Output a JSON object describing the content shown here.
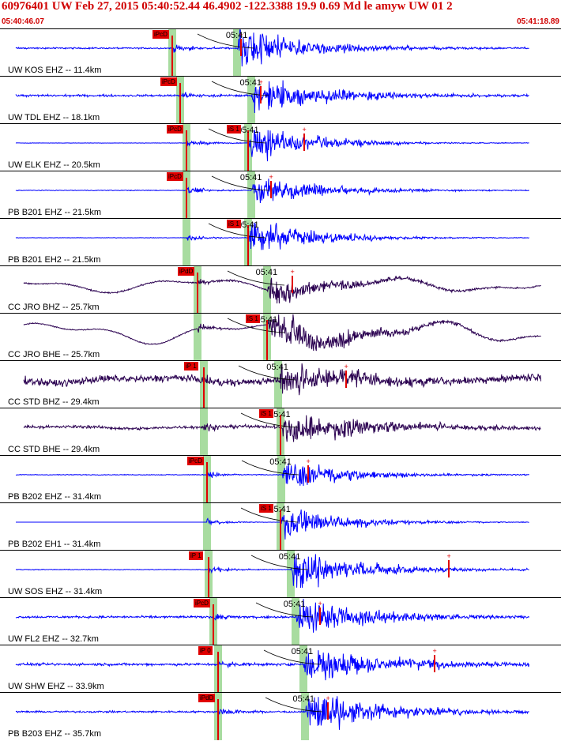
{
  "header": {
    "title": "60976401 UW Feb 27, 2015 05:40:52.44   46.4902 -122.3388 19.9 0.69 Md le amyw UW 01   2",
    "start_time": "05:40:46.07",
    "end_time": "05:41:18.89"
  },
  "time_mark_label": "05:41",
  "colors": {
    "trace_blue": "#0000ff",
    "trace_dark": "#2a0050",
    "pick_red": "#e00000",
    "window_green": "#a8dca0"
  },
  "stations": [
    {
      "label": "UW KOS EHZ -- 11.4km",
      "pick": "iPcD",
      "s_pick": "",
      "color": "blue",
      "p": 218,
      "s": 300,
      "amp": 0.55,
      "noise": 0.04,
      "coda": 0.25,
      "lf": 0,
      "marker": 305
    },
    {
      "label": "UW TDL EHZ -- 18.1km",
      "pick": "iPcD",
      "s_pick": "",
      "color": "blue",
      "p": 228,
      "s": 318,
      "amp": 0.5,
      "noise": 0.06,
      "coda": 0.3,
      "lf": 0,
      "marker": 330
    },
    {
      "label": "UW ELK EHZ -- 20.5km",
      "pick": "iPcD",
      "s_pick": "iS 1",
      "color": "blue",
      "p": 236,
      "s": 314,
      "amp": 0.55,
      "noise": 0.01,
      "coda": 0.15,
      "lf": 0,
      "marker": 385
    },
    {
      "label": "PB B201 EHZ -- 21.5km",
      "pick": "iPcD",
      "s_pick": "",
      "color": "blue",
      "p": 236,
      "s": 318,
      "amp": 0.45,
      "noise": 0.02,
      "coda": 0.2,
      "lf": 0,
      "marker": 343
    },
    {
      "label": "PB B201 EH2 -- 21.5km",
      "pick": "",
      "s_pick": "iS 1",
      "color": "blue",
      "p": 236,
      "s": 314,
      "amp": 0.5,
      "noise": 0.01,
      "coda": 0.15,
      "lf": 0,
      "marker": 0
    },
    {
      "label": "CC JRO BHZ -- 25.7km",
      "pick": "iPdD",
      "s_pick": "",
      "color": "dark",
      "p": 250,
      "s": 338,
      "amp": 0.4,
      "noise": 0.04,
      "coda": 0.2,
      "lf": 0.3,
      "marker": 370
    },
    {
      "label": "CC JRO BHE -- 25.7km",
      "pick": "",
      "s_pick": "iS 1",
      "color": "dark",
      "p": 250,
      "s": 338,
      "amp": 0.55,
      "noise": 0.03,
      "coda": 0.3,
      "lf": 0.45,
      "marker": 0
    },
    {
      "label": "CC STD BHZ -- 29.4km",
      "pick": "iP 1",
      "s_pick": "",
      "color": "dark",
      "p": 258,
      "s": 352,
      "amp": 0.45,
      "noise": 0.2,
      "coda": 0.35,
      "lf": 0.12,
      "marker": 438
    },
    {
      "label": "CC STD BHE -- 29.4km",
      "pick": "",
      "s_pick": "iS 1",
      "color": "dark",
      "p": 258,
      "s": 355,
      "amp": 0.5,
      "noise": 0.08,
      "coda": 0.4,
      "lf": 0.05,
      "marker": 0
    },
    {
      "label": "PB B202 EHZ -- 31.4km",
      "pick": "iPcD",
      "s_pick": "",
      "color": "blue",
      "p": 262,
      "s": 356,
      "amp": 0.4,
      "noise": 0.02,
      "coda": 0.2,
      "lf": 0,
      "marker": 390
    },
    {
      "label": "PB B202 EH1 -- 31.4km",
      "pick": "",
      "s_pick": "iS 1",
      "color": "blue",
      "p": 262,
      "s": 355,
      "amp": 0.45,
      "noise": 0.0,
      "coda": 0.15,
      "lf": 0,
      "marker": 0
    },
    {
      "label": "UW SOS EHZ -- 31.4km",
      "pick": "iP 1",
      "s_pick": "",
      "color": "blue",
      "p": 264,
      "s": 368,
      "amp": 0.5,
      "noise": 0.02,
      "coda": 0.3,
      "lf": 0,
      "marker": 568
    },
    {
      "label": "UW FL2 EHZ -- 32.7km",
      "pick": "iPcD",
      "s_pick": "",
      "color": "blue",
      "p": 270,
      "s": 374,
      "amp": 0.5,
      "noise": 0.06,
      "coda": 0.3,
      "lf": 0,
      "marker": 405
    },
    {
      "label": "UW SHW EHZ -- 33.9km",
      "pick": "iP 0",
      "s_pick": "",
      "color": "blue",
      "p": 276,
      "s": 384,
      "amp": 0.45,
      "noise": 0.07,
      "coda": 0.45,
      "lf": 0,
      "marker": 550
    },
    {
      "label": "PB B203 EHZ -- 35.7km",
      "pick": "iPdD",
      "s_pick": "",
      "color": "blue",
      "p": 276,
      "s": 386,
      "amp": 0.55,
      "noise": 0.05,
      "coda": 0.3,
      "lf": 0,
      "marker": 415
    }
  ]
}
